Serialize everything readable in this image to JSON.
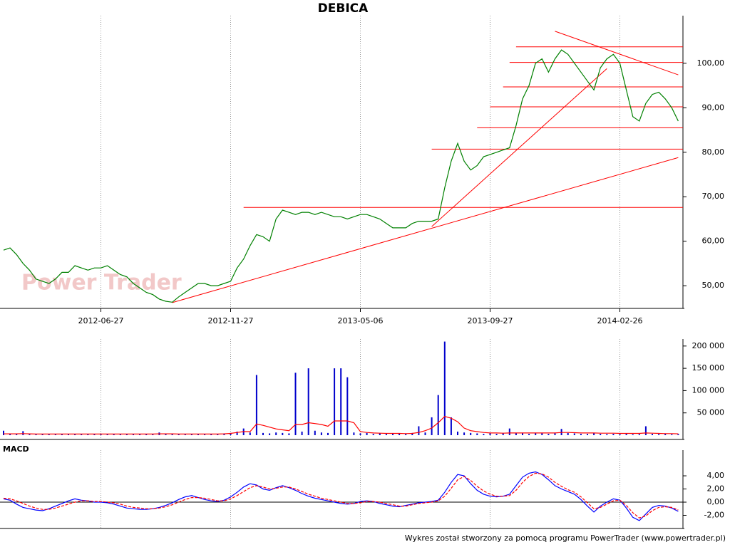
{
  "chart_data": [
    {
      "type": "line",
      "title": "DEBICA",
      "watermark": "Power Trader",
      "categories": [
        null,
        null,
        null,
        null,
        null,
        null,
        null,
        null,
        null,
        null,
        null,
        null,
        null,
        null,
        null,
        "2012-06-27",
        null,
        null,
        null,
        null,
        null,
        null,
        null,
        null,
        null,
        null,
        null,
        null,
        null,
        null,
        null,
        null,
        null,
        null,
        null,
        "2012-11-27",
        null,
        null,
        null,
        null,
        null,
        null,
        null,
        null,
        null,
        null,
        null,
        null,
        null,
        null,
        null,
        null,
        null,
        null,
        null,
        "2013-05-06",
        null,
        null,
        null,
        null,
        null,
        null,
        null,
        null,
        null,
        null,
        null,
        null,
        null,
        null,
        null,
        null,
        null,
        null,
        null,
        "2013-09-27",
        null,
        null,
        null,
        null,
        null,
        null,
        null,
        null,
        null,
        null,
        null,
        null,
        null,
        null,
        null,
        null,
        null,
        null,
        null,
        "2014-02-26",
        null,
        null,
        null,
        null,
        null,
        null,
        null,
        null,
        null
      ],
      "series": [
        {
          "color": "#008000",
          "values": [
            58,
            58.5,
            57,
            55,
            53.5,
            51.5,
            51,
            50.5,
            51.5,
            53,
            53,
            54.5,
            54,
            53.5,
            54,
            54,
            54.5,
            53.5,
            52.5,
            52,
            50.5,
            49.5,
            48.5,
            48,
            47,
            46.5,
            46.3,
            47.5,
            48.5,
            49.5,
            50.5,
            50.5,
            50,
            50,
            50.5,
            51,
            54,
            56,
            59,
            61.5,
            61,
            60,
            65,
            67,
            66.5,
            66,
            66.5,
            66.5,
            66,
            66.5,
            66,
            65.5,
            65.5,
            65,
            65.5,
            66,
            66,
            65.5,
            65,
            64,
            63,
            63,
            63,
            64,
            64.5,
            64.5,
            64.5,
            65,
            72,
            78,
            82,
            78,
            76,
            77,
            79,
            79.5,
            80,
            80.5,
            81,
            86,
            92,
            95,
            100,
            101,
            98,
            101,
            103,
            102,
            100,
            98,
            96,
            94,
            99,
            101,
            102,
            100,
            94,
            88,
            87,
            91,
            93,
            93.5,
            92,
            90,
            87
          ]
        }
      ],
      "line_color": "#ff0000",
      "levels": [
        {
          "from": 79,
          "value": 103.7
        },
        {
          "from": 78,
          "value": 100.2
        },
        {
          "from": 77,
          "value": 94.7
        },
        {
          "from": 75,
          "value": 90.2
        },
        {
          "from": 73,
          "value": 85.5
        },
        {
          "from": 66,
          "value": 80.7
        },
        {
          "from": 37,
          "value": 67.6
        }
      ],
      "trendlines": [
        {
          "from": [
            26,
            46.2
          ],
          "to": [
            104,
            78.8
          ]
        },
        {
          "from": [
            66,
            63.3
          ],
          "to": [
            93,
            98.8
          ]
        },
        {
          "from": [
            85,
            107.2
          ],
          "to": [
            104,
            97.4
          ]
        }
      ],
      "ylim": [
        44.9,
        110.7
      ],
      "yticks": [
        {
          "value": 50,
          "label": "50,00"
        },
        {
          "value": 60,
          "label": "60,00"
        },
        {
          "value": 70,
          "label": "70,00"
        },
        {
          "value": 80,
          "label": "80,00"
        },
        {
          "value": 90,
          "label": "90,00"
        },
        {
          "value": 100,
          "label": "100,00"
        }
      ],
      "grid": true
    },
    {
      "type": "bar",
      "series": [
        {
          "color": "#0000cc",
          "values": [
            10000,
            3000,
            2500,
            9000,
            2000,
            3000,
            2500,
            2000,
            3000,
            2500,
            3000,
            2000,
            2500,
            2000,
            3000,
            2500,
            2000,
            3000,
            2500,
            2000,
            2500,
            3000,
            2000,
            2500,
            6000,
            2500,
            3000,
            2000,
            2500,
            3000,
            2500,
            2000,
            3000,
            2500,
            4000,
            5000,
            8000,
            15000,
            6000,
            135000,
            5000,
            4000,
            6000,
            5000,
            4000,
            140000,
            8000,
            150000,
            10000,
            6000,
            5000,
            150000,
            150000,
            130000,
            6000,
            4000,
            5000,
            3000,
            4000,
            3000,
            3000,
            4000,
            3000,
            5000,
            20000,
            6000,
            40000,
            90000,
            210000,
            40000,
            8000,
            6000,
            5000,
            4000,
            3000,
            4000,
            3000,
            4000,
            15000,
            5000,
            4000,
            3000,
            5000,
            4000,
            3000,
            4000,
            14000,
            5000,
            4000,
            3000,
            3000,
            4000,
            3000,
            2500,
            3000,
            2500,
            3000,
            2000,
            2500,
            20000,
            3000,
            2500,
            3000,
            2000,
            2500
          ]
        },
        {
          "type": "line",
          "color": "#ff0000",
          "values": [
            3000,
            3000,
            3000,
            3500,
            3000,
            2500,
            2500,
            2500,
            2500,
            2500,
            2500,
            2500,
            2500,
            2500,
            2500,
            2500,
            2500,
            2500,
            2500,
            2500,
            2500,
            2500,
            2500,
            2500,
            3000,
            3000,
            3000,
            2500,
            2500,
            2500,
            2500,
            2500,
            2500,
            2500,
            3000,
            4000,
            6000,
            8000,
            8000,
            25000,
            22000,
            18000,
            14000,
            12000,
            10000,
            24000,
            24000,
            28000,
            26000,
            24000,
            20000,
            32000,
            32000,
            32000,
            28000,
            8000,
            6000,
            5000,
            4500,
            4000,
            4000,
            4000,
            3500,
            4000,
            6000,
            10000,
            16000,
            28000,
            42000,
            38000,
            30000,
            16000,
            10000,
            8000,
            6000,
            5000,
            5000,
            4500,
            5000,
            5000,
            5000,
            5000,
            5000,
            5000,
            5000,
            5000,
            6000,
            6000,
            5500,
            5000,
            5000,
            5000,
            4500,
            4500,
            4500,
            4000,
            4000,
            4000,
            4000,
            5000,
            4500,
            4000,
            3500,
            3500,
            3000
          ]
        }
      ],
      "ylim": [
        -9600,
        215700
      ],
      "yticks": [
        {
          "value": 50000,
          "label": "50 000"
        },
        {
          "value": 100000,
          "label": "100 000"
        },
        {
          "value": 150000,
          "label": "150 000"
        },
        {
          "value": 200000,
          "label": "200 000"
        }
      ]
    },
    {
      "type": "line",
      "title": "MACD",
      "series": [
        {
          "color": "#0000ff",
          "values": [
            0.5,
            0.3,
            -0.3,
            -0.8,
            -1.0,
            -1.2,
            -1.3,
            -1.0,
            -0.6,
            -0.2,
            0.2,
            0.5,
            0.3,
            0.2,
            0.0,
            0.0,
            -0.1,
            -0.3,
            -0.6,
            -0.9,
            -1.0,
            -1.1,
            -1.1,
            -1.0,
            -0.8,
            -0.5,
            -0.1,
            0.4,
            0.8,
            1.0,
            0.7,
            0.4,
            0.2,
            0.1,
            0.3,
            0.8,
            1.5,
            2.3,
            2.8,
            2.6,
            2.0,
            1.8,
            2.2,
            2.5,
            2.2,
            1.8,
            1.3,
            0.9,
            0.6,
            0.4,
            0.2,
            0.0,
            -0.2,
            -0.3,
            -0.2,
            0.1,
            0.2,
            0.1,
            -0.2,
            -0.4,
            -0.6,
            -0.7,
            -0.5,
            -0.3,
            -0.1,
            0.0,
            0.1,
            0.3,
            1.5,
            3.0,
            4.2,
            4.0,
            2.8,
            1.8,
            1.2,
            0.9,
            0.8,
            0.9,
            1.2,
            2.5,
            3.8,
            4.4,
            4.6,
            4.2,
            3.4,
            2.5,
            2.0,
            1.6,
            1.2,
            0.4,
            -0.6,
            -1.5,
            -0.6,
            0.0,
            0.5,
            0.3,
            -0.9,
            -2.3,
            -2.8,
            -1.8,
            -0.8,
            -0.5,
            -0.6,
            -0.9,
            -1.4
          ]
        },
        {
          "color": "#ff0000",
          "dashed": true,
          "values": [
            0.6,
            0.5,
            0.2,
            -0.2,
            -0.6,
            -0.9,
            -1.1,
            -1.1,
            -0.9,
            -0.6,
            -0.3,
            0.0,
            0.2,
            0.2,
            0.1,
            0.1,
            0.0,
            -0.1,
            -0.3,
            -0.6,
            -0.8,
            -0.9,
            -1.0,
            -1.0,
            -0.9,
            -0.7,
            -0.4,
            0.0,
            0.4,
            0.7,
            0.7,
            0.6,
            0.4,
            0.2,
            0.2,
            0.5,
            1.0,
            1.6,
            2.2,
            2.5,
            2.3,
            2.0,
            2.1,
            2.3,
            2.3,
            2.0,
            1.6,
            1.2,
            0.9,
            0.6,
            0.4,
            0.2,
            0.0,
            -0.2,
            -0.2,
            -0.1,
            0.1,
            0.1,
            0.0,
            -0.2,
            -0.4,
            -0.6,
            -0.6,
            -0.4,
            -0.2,
            -0.1,
            0.0,
            0.2,
            0.9,
            2.1,
            3.4,
            3.9,
            3.3,
            2.4,
            1.7,
            1.2,
            0.9,
            0.9,
            1.0,
            1.8,
            3.0,
            3.9,
            4.4,
            4.3,
            3.8,
            3.0,
            2.4,
            1.9,
            1.5,
            0.8,
            -0.1,
            -1.0,
            -0.8,
            -0.3,
            0.2,
            0.3,
            -0.5,
            -1.6,
            -2.4,
            -2.1,
            -1.3,
            -0.8,
            -0.7,
            -0.8,
            -1.2
          ]
        }
      ],
      "ylim": [
        -4,
        7.9
      ],
      "yticks": [
        {
          "value": -2,
          "label": "-2,00"
        },
        {
          "value": 0,
          "label": "0,00"
        },
        {
          "value": 2,
          "label": "2,00"
        },
        {
          "value": 4,
          "label": "4,00"
        }
      ],
      "zero_line": true
    }
  ],
  "footer": "Wykres został stworzony za pomocą programu PowerTrader (www.powertrader.pl)"
}
